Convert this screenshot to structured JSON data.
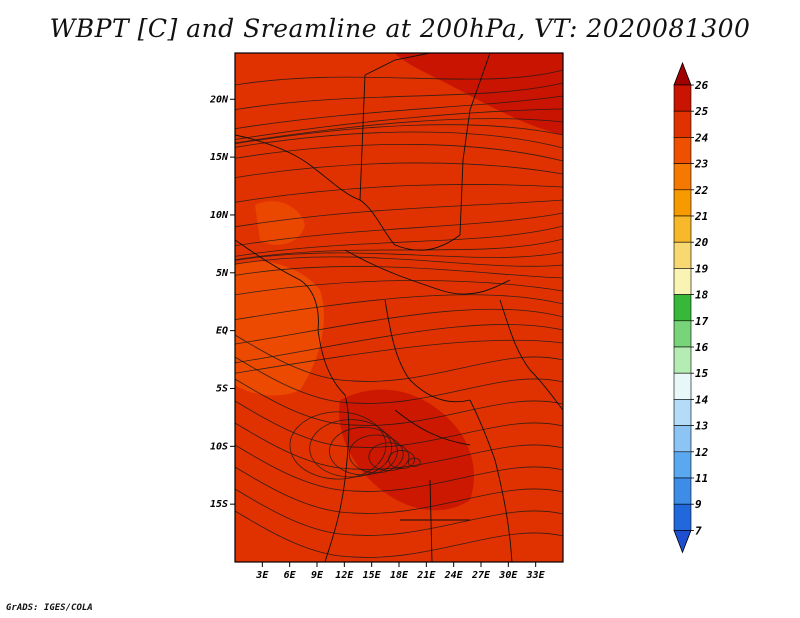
{
  "title": "WBPT [C] and Sreamline at 200hPa, VT: 2020081300",
  "credit": "GrADS: IGES/COLA",
  "map": {
    "lon_range": [
      0,
      36
    ],
    "lat_range": [
      -20,
      24
    ],
    "lat_ticks": [
      "20N",
      "15N",
      "10N",
      "5N",
      "EQ",
      "5S",
      "10S",
      "15S"
    ],
    "lat_tick_values": [
      20,
      15,
      10,
      5,
      0,
      -5,
      -10,
      -15
    ],
    "lon_ticks": [
      "3E",
      "6E",
      "9E",
      "12E",
      "15E",
      "18E",
      "21E",
      "24E",
      "27E",
      "30E",
      "33E"
    ],
    "lon_tick_values": [
      3,
      6,
      9,
      12,
      15,
      18,
      21,
      24,
      27,
      30,
      33
    ]
  },
  "colorbar": {
    "labels": [
      "26",
      "25",
      "24",
      "23",
      "22",
      "21",
      "20",
      "19",
      "18",
      "17",
      "16",
      "15",
      "14",
      "13",
      "12",
      "11",
      "9",
      "7"
    ],
    "colors": [
      "#a00000",
      "#c81400",
      "#e03200",
      "#ee5000",
      "#f57800",
      "#f79a00",
      "#f7b82c",
      "#f8d870",
      "#faf4b4",
      "#38b838",
      "#78d478",
      "#b4ecb4",
      "#e8f8f8",
      "#b4dcf8",
      "#8cc4f4",
      "#5aa8f0",
      "#3c8ce8",
      "#2068dc",
      "#1e4fd0"
    ]
  },
  "field_colors": {
    "dominant": "#e03200",
    "warm": "#c81400",
    "cool": "#ee5000",
    "streamline": "#1a1a1a",
    "boundary": "#101010"
  }
}
